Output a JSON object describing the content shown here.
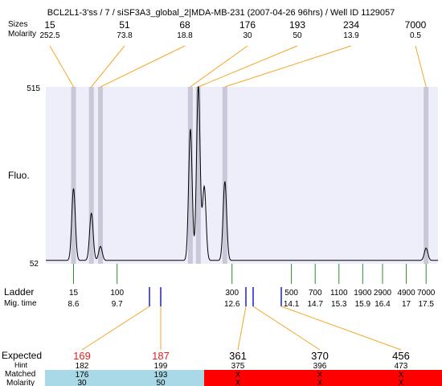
{
  "header": {
    "title": "BCL2L1-3'ss / 7 / siSF3A3_global_2|MDA-MB-231 (2007-04-26 96hrs) / Well ID 1129057",
    "sizes_label": "Sizes",
    "molarity_label": "Molarity"
  },
  "top_peaks": [
    {
      "size": "15",
      "molarity": "252.5"
    },
    {
      "size": "51",
      "molarity": "73.8"
    },
    {
      "size": "68",
      "molarity": "18.8"
    },
    {
      "size": "176",
      "molarity": "30"
    },
    {
      "size": "193",
      "molarity": "50"
    },
    {
      "size": "234",
      "molarity": "13.9"
    },
    {
      "size": "7000",
      "molarity": "0.5"
    }
  ],
  "chart_data": {
    "type": "line",
    "title": "",
    "ylabel": "Fluo.",
    "y_ticks": [
      "515",
      "52"
    ],
    "ylim": [
      52,
      515
    ],
    "xlabel": "Mig. time",
    "xlim": [
      7.9,
      17.8
    ],
    "peaks": [
      {
        "time": 8.6,
        "size": 15,
        "height": 0.41
      },
      {
        "time": 9.05,
        "size": 51,
        "height": 0.27
      },
      {
        "time": 9.28,
        "size": 68,
        "height": 0.08
      },
      {
        "time": 11.55,
        "size": 176,
        "height": 0.75
      },
      {
        "time": 11.75,
        "size": 193,
        "height": 1.0
      },
      {
        "time": 11.9,
        "size": 193,
        "height": 0.42
      },
      {
        "time": 12.42,
        "size": 234,
        "height": 0.45
      },
      {
        "time": 17.5,
        "size": 7000,
        "height": 0.07
      }
    ]
  },
  "ladder": {
    "label": "Ladder",
    "time_label": "Mig. time",
    "items": [
      {
        "size": "15",
        "time": "8.6",
        "t": 8.6
      },
      {
        "size": "100",
        "time": "9.7",
        "t": 9.7
      },
      {
        "size": "300",
        "time": "12.6",
        "t": 12.6
      },
      {
        "size": "500",
        "time": "14.1",
        "t": 14.1
      },
      {
        "size": "700",
        "time": "14.7",
        "t": 14.7
      },
      {
        "size": "1100",
        "time": "15.3",
        "t": 15.3
      },
      {
        "size": "1900",
        "time": "15.9",
        "t": 15.9
      },
      {
        "size": "2900",
        "time": "16.4",
        "t": 16.4
      },
      {
        "size": "4900",
        "time": "17",
        "t": 17.0
      },
      {
        "size": "7000",
        "time": "17.5",
        "t": 17.5
      }
    ]
  },
  "expected": {
    "label": "Expected",
    "hint_label": "Hint",
    "matched_label": "Matched",
    "molarity_label": "Molarity",
    "items": [
      {
        "expected": "169",
        "hint": "182",
        "matched": "176",
        "molarity": "30",
        "status": "matched"
      },
      {
        "expected": "187",
        "hint": "199",
        "matched": "193",
        "molarity": "50",
        "status": "matched"
      },
      {
        "expected": "361",
        "hint": "375",
        "matched": "X",
        "molarity": "X",
        "status": "missing"
      },
      {
        "expected": "370",
        "hint": "396",
        "matched": "X",
        "molarity": "X",
        "status": "missing"
      },
      {
        "expected": "456",
        "hint": "473",
        "matched": "X",
        "molarity": "X",
        "status": "missing"
      }
    ]
  },
  "colors": {
    "plot_bg": "#eeeefb",
    "band": "#c8c8d8",
    "trace": "#000000",
    "leader": "#f5a623",
    "ladder_tick": "#2e8b2e",
    "expected_tick": "#1a1adc",
    "expected_red": "#e62020",
    "matched_bg": "#a9d8e6",
    "missing_bg": "#ff0000"
  }
}
